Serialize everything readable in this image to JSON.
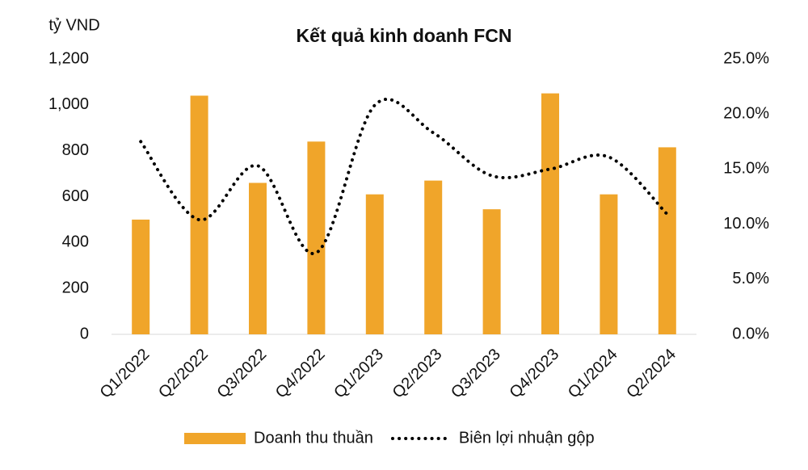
{
  "chart_data": {
    "type": "bar-line",
    "title": "Kết quả kinh doanh FCN",
    "y_label": "tỷ VND",
    "categories": [
      "Q1/2022",
      "Q2/2022",
      "Q3/2022",
      "Q4/2022",
      "Q1/2023",
      "Q2/2023",
      "Q3/2023",
      "Q4/2023",
      "Q1/2024",
      "Q2/2024"
    ],
    "series": [
      {
        "name": "Doanh thu thuần",
        "type": "bar",
        "color": "#f0a52a",
        "values": [
          500,
          1040,
          660,
          840,
          610,
          670,
          545,
          1050,
          610,
          815
        ]
      },
      {
        "name": "Biên lợi nhuận gộp",
        "type": "line",
        "axis": "y2",
        "color": "#000000",
        "values": [
          17.5,
          10.4,
          15.3,
          7.4,
          20.8,
          18.3,
          14.4,
          15.0,
          16.1,
          10.9
        ]
      }
    ],
    "ylim": [
      0,
      1200
    ],
    "yticks": [
      0,
      200,
      400,
      600,
      800,
      {
        "value": 1000,
        "label": "1,000"
      },
      {
        "value": 1200,
        "label": "1,200"
      }
    ],
    "y2lim": [
      0,
      25
    ],
    "y2ticks": [
      {
        "value": 0,
        "label": "0.0%"
      },
      {
        "value": 5,
        "label": "5.0%"
      },
      {
        "value": 10,
        "label": "10.0%"
      },
      {
        "value": 15,
        "label": "15.0%"
      },
      {
        "value": 20,
        "label": "20.0%"
      },
      {
        "value": 25,
        "label": "25.0%"
      }
    ],
    "legend": "bottom"
  }
}
